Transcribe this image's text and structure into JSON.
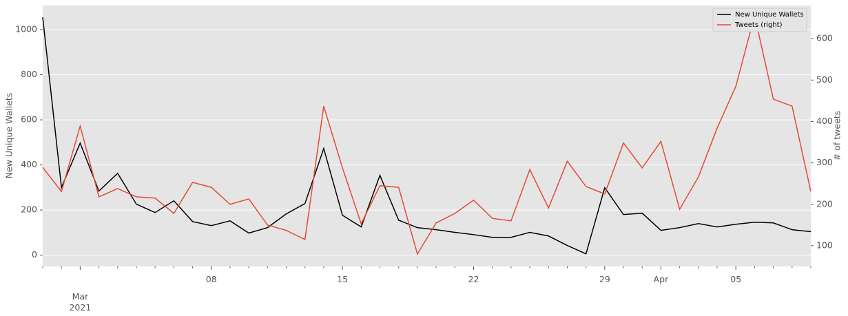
{
  "chart_data": {
    "type": "line",
    "ylabel": "New Unique Wallets",
    "y2label": "# of tweets",
    "x": [
      "2021-02-27",
      "2021-02-28",
      "2021-03-01",
      "2021-03-02",
      "2021-03-03",
      "2021-03-04",
      "2021-03-05",
      "2021-03-06",
      "2021-03-07",
      "2021-03-08",
      "2021-03-09",
      "2021-03-10",
      "2021-03-11",
      "2021-03-12",
      "2021-03-13",
      "2021-03-14",
      "2021-03-15",
      "2021-03-16",
      "2021-03-17",
      "2021-03-18",
      "2021-03-19",
      "2021-03-20",
      "2021-03-21",
      "2021-03-22",
      "2021-03-23",
      "2021-03-24",
      "2021-03-25",
      "2021-03-26",
      "2021-03-27",
      "2021-03-28",
      "2021-03-29",
      "2021-03-30",
      "2021-03-31",
      "2021-04-01",
      "2021-04-02",
      "2021-04-03",
      "2021-04-04",
      "2021-04-05",
      "2021-04-06",
      "2021-04-07",
      "2021-04-08",
      "2021-04-09"
    ],
    "series": [
      {
        "name": "New Unique Wallets",
        "color": "#000000",
        "values": [
          1055,
          300,
          497,
          284,
          363,
          226,
          189,
          241,
          149,
          131,
          152,
          98,
          122,
          183,
          229,
          473,
          177,
          125,
          354,
          155,
          122,
          113,
          101,
          91,
          79,
          79,
          101,
          85,
          43,
          6,
          299,
          180,
          186,
          110,
          122,
          140,
          125,
          137,
          146,
          143,
          113,
          104
        ]
      },
      {
        "name": "Tweets (right)",
        "color": "#e24a33",
        "axis": "y2",
        "values": [
          289,
          231,
          389,
          218,
          238,
          218,
          215,
          178,
          253,
          241,
          200,
          213,
          150,
          137,
          115,
          437,
          288,
          153,
          245,
          241,
          80,
          155,
          178,
          210,
          166,
          160,
          284,
          191,
          304,
          243,
          225,
          348,
          288,
          352,
          188,
          266,
          384,
          485,
          656,
          454,
          437,
          231
        ]
      }
    ],
    "xlim": [
      "2021-02-27",
      "2021-04-09"
    ],
    "xticks": [
      {
        "value": "2021-03-01",
        "label": "Mar\n2021"
      },
      {
        "value": "2021-03-08",
        "label": "08"
      },
      {
        "value": "2021-03-15",
        "label": "15"
      },
      {
        "value": "2021-03-22",
        "label": "22"
      },
      {
        "value": "2021-03-29",
        "label": "29"
      },
      {
        "value": "2021-04-01",
        "label": "Apr"
      },
      {
        "value": "2021-04-05",
        "label": "05"
      }
    ],
    "ylim": [
      -50,
      1107
    ],
    "yticks": [
      0,
      200,
      400,
      600,
      800,
      1000
    ],
    "y2lim": [
      50,
      680
    ],
    "y2ticks": [
      100,
      200,
      300,
      400,
      500,
      600
    ],
    "grid": true,
    "legend": "upper right"
  }
}
